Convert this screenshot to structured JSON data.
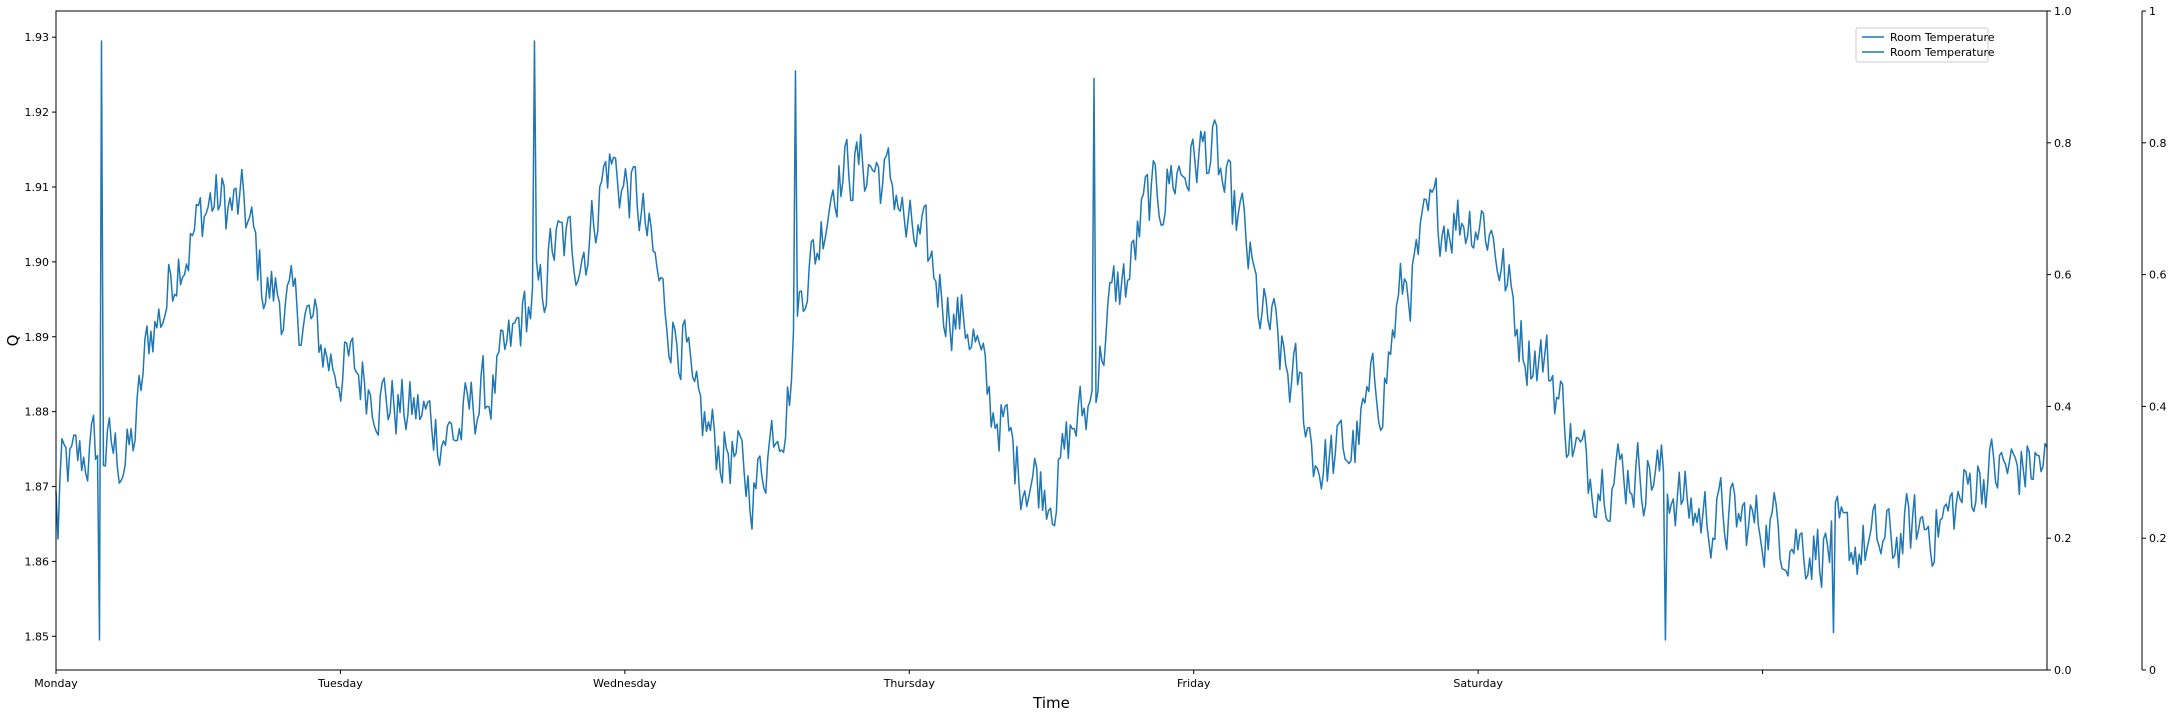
{
  "chart_data": {
    "type": "line",
    "title": "",
    "xlabel": "Time",
    "ylabel": "Q",
    "x_ticks": [
      "Monday",
      "Tuesday",
      "Wednesday",
      "Thursday",
      "Friday",
      "Saturday",
      ""
    ],
    "ylim": [
      1.8455,
      1.9335
    ],
    "y_ticks": [
      1.85,
      1.86,
      1.87,
      1.88,
      1.89,
      1.9,
      1.91,
      1.92,
      1.93
    ],
    "y_tick_labels": [
      "1.85",
      "1.86",
      "1.87",
      "1.88",
      "1.89",
      "1.90",
      "1.91",
      "1.92",
      "1.93"
    ],
    "right_axis_1": {
      "ylim": [
        0,
        1
      ],
      "ticks": [
        "0.0",
        "0.2",
        "0.4",
        "0.6",
        "0.8",
        "1.0"
      ]
    },
    "right_axis_2": {
      "ylim": [
        0,
        1
      ],
      "ticks": [
        "0",
        "0.2",
        "0.4",
        "0.6",
        "0.8",
        "1"
      ]
    },
    "grid": false,
    "legend_position": "top-right",
    "series": [
      {
        "name": "Room Temperature",
        "color": "#1f77b4",
        "x_anchors": [
          0,
          0.025,
          0.15,
          0.25,
          0.35,
          0.45,
          0.55,
          0.65,
          0.75,
          0.85,
          1.0,
          1.25,
          1.4,
          1.5,
          1.7,
          1.75,
          1.85,
          1.95,
          2.0,
          2.2,
          2.25,
          2.35,
          2.45,
          2.55,
          2.65,
          2.75,
          2.85,
          2.95,
          3.0,
          3.2,
          3.3,
          3.4,
          3.5,
          3.6,
          3.75,
          3.85,
          3.95,
          4.05,
          4.15,
          4.25,
          4.35,
          4.45,
          4.55,
          4.65,
          4.75,
          4.85,
          5.0,
          5.2,
          5.4,
          5.6,
          5.8,
          6.0,
          6.2,
          6.4,
          6.6,
          6.8,
          7.0
        ],
        "y_anchors": [
          1.868,
          1.872,
          1.875,
          1.874,
          1.892,
          1.902,
          1.908,
          1.907,
          1.896,
          1.893,
          1.886,
          1.88,
          1.877,
          1.882,
          1.895,
          1.902,
          1.902,
          1.913,
          1.91,
          1.89,
          1.879,
          1.875,
          1.87,
          1.88,
          1.9,
          1.912,
          1.913,
          1.91,
          1.903,
          1.892,
          1.88,
          1.872,
          1.87,
          1.879,
          1.897,
          1.908,
          1.912,
          1.915,
          1.906,
          1.892,
          1.884,
          1.873,
          1.875,
          1.883,
          1.897,
          1.906,
          1.906,
          1.888,
          1.872,
          1.872,
          1.866,
          1.865,
          1.862,
          1.862,
          1.865,
          1.872,
          1.873
        ],
        "noise_amplitude": 0.0045,
        "extreme_points": [
          {
            "x": 0.01,
            "y": 1.863
          },
          {
            "x": 0.155,
            "y": 1.8495
          },
          {
            "x": 0.158,
            "y": 1.9295
          },
          {
            "x": 1.68,
            "y": 1.9295
          },
          {
            "x": 2.6,
            "y": 1.9255
          },
          {
            "x": 3.65,
            "y": 1.9245
          },
          {
            "x": 5.66,
            "y": 1.8495
          },
          {
            "x": 6.25,
            "y": 1.8505
          }
        ]
      },
      {
        "name": "Room Temperature",
        "color": "#1f77b4"
      }
    ]
  }
}
